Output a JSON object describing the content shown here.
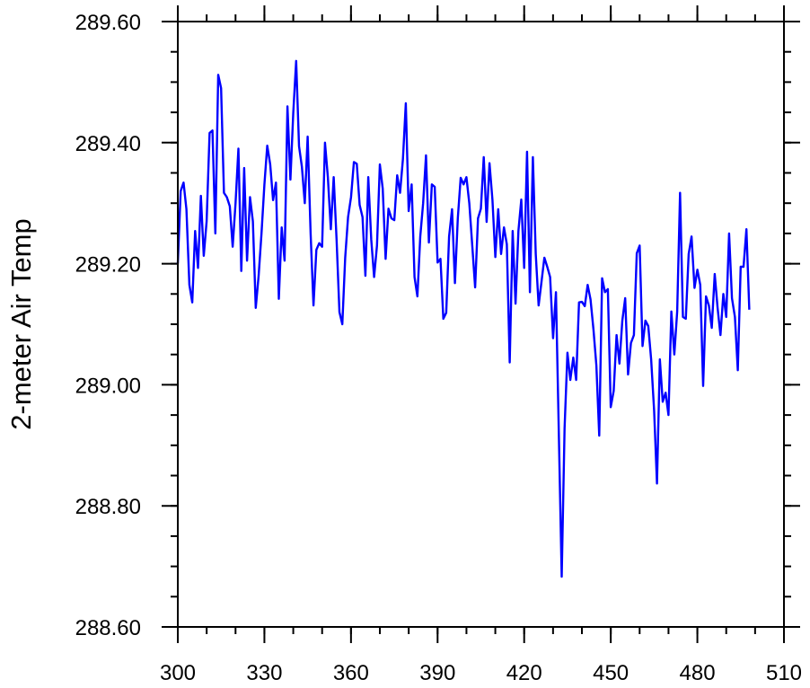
{
  "chart_data": {
    "type": "line",
    "title": "",
    "xlabel": "",
    "ylabel": "2-meter Air Temp",
    "xlim": [
      300,
      510
    ],
    "ylim": [
      288.6,
      289.6
    ],
    "x_ticks": [
      300,
      330,
      360,
      390,
      420,
      450,
      480,
      510
    ],
    "x_tick_labels": [
      "300",
      "330",
      "360",
      "390",
      "420",
      "450",
      "480",
      "510"
    ],
    "y_ticks": [
      288.6,
      288.8,
      289.0,
      289.2,
      289.4,
      289.6
    ],
    "y_tick_labels": [
      "288.60",
      "288.80",
      "289.00",
      "289.20",
      "289.40",
      "289.60"
    ],
    "x_minor_step": 10,
    "y_minor_step": 0.05,
    "grid": false,
    "line_color": "#0000ff",
    "series": [
      {
        "x_start": 300,
        "x_step": 1,
        "values": [
          289.2,
          289.32,
          289.334,
          289.29,
          289.165,
          289.136,
          289.254,
          289.193,
          289.312,
          289.213,
          289.27,
          289.416,
          289.42,
          289.25,
          289.512,
          289.49,
          289.317,
          289.31,
          289.295,
          289.228,
          289.3,
          289.39,
          289.188,
          289.358,
          289.205,
          289.31,
          289.27,
          289.127,
          289.18,
          289.25,
          289.33,
          289.395,
          289.364,
          289.305,
          289.334,
          289.142,
          289.26,
          289.205,
          289.46,
          289.339,
          289.45,
          289.535,
          289.394,
          289.36,
          289.3,
          289.41,
          289.25,
          289.131,
          289.223,
          289.234,
          289.228,
          289.4,
          289.343,
          289.257,
          289.343,
          289.24,
          289.12,
          289.1,
          289.21,
          289.277,
          289.31,
          289.368,
          289.365,
          289.297,
          289.277,
          289.18,
          289.343,
          289.24,
          289.178,
          289.23,
          289.364,
          289.324,
          289.208,
          289.291,
          289.275,
          289.272,
          289.346,
          289.317,
          289.373,
          289.465,
          289.287,
          289.331,
          289.178,
          289.146,
          289.245,
          289.3,
          289.379,
          289.235,
          289.331,
          289.327,
          289.202,
          289.208,
          289.109,
          289.119,
          289.245,
          289.29,
          289.168,
          289.275,
          289.342,
          289.331,
          289.343,
          289.3,
          289.23,
          289.161,
          289.275,
          289.291,
          289.376,
          289.269,
          289.366,
          289.305,
          289.211,
          289.29,
          289.216,
          289.26,
          289.232,
          289.037,
          289.254,
          289.134,
          289.254,
          289.306,
          289.193,
          289.385,
          289.153,
          289.376,
          289.216,
          289.131,
          289.17,
          289.21,
          289.195,
          289.178,
          289.077,
          289.153,
          288.92,
          288.683,
          288.928,
          289.053,
          289.008,
          289.045,
          289.008,
          289.136,
          289.137,
          289.13,
          289.165,
          289.141,
          289.091,
          289.032,
          288.916,
          289.176,
          289.153,
          289.158,
          288.963,
          288.99,
          289.082,
          289.035,
          289.106,
          289.143,
          289.017,
          289.069,
          289.082,
          289.217,
          289.23,
          289.064,
          289.106,
          289.097,
          289.042,
          288.958,
          288.837,
          289.042,
          288.972,
          288.987,
          288.95,
          289.121,
          289.05,
          289.121,
          289.317,
          289.112,
          289.109,
          289.216,
          289.245,
          289.16,
          289.19,
          289.165,
          288.998,
          289.146,
          289.131,
          289.094,
          289.183,
          289.127,
          289.082,
          289.15,
          289.112,
          289.25,
          289.143,
          289.112,
          289.024,
          289.195,
          289.195,
          289.257,
          289.124
        ]
      }
    ]
  }
}
